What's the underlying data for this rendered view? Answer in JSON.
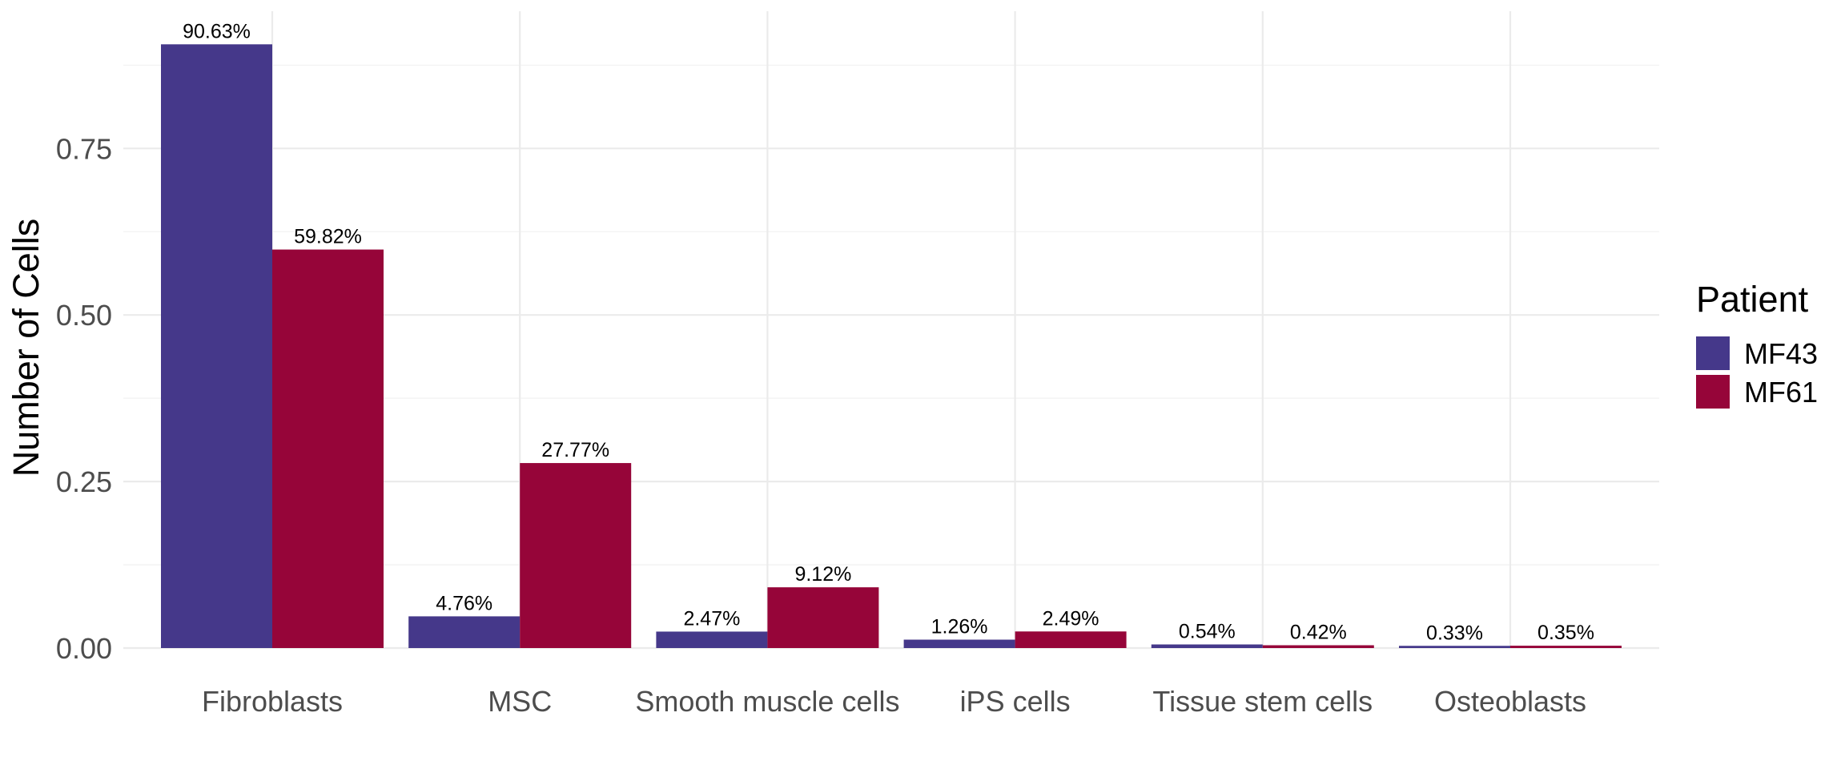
{
  "chart_data": {
    "type": "bar",
    "categories": [
      "Fibroblasts",
      "MSC",
      "Smooth muscle cells",
      "iPS cells",
      "Tissue stem cells",
      "Osteoblasts"
    ],
    "series": [
      {
        "name": "MF43",
        "color": "#45388a",
        "values": [
          0.9063,
          0.0476,
          0.0247,
          0.0126,
          0.0054,
          0.0033
        ],
        "labels": [
          "90.63%",
          "4.76%",
          "2.47%",
          "1.26%",
          "0.54%",
          "0.33%"
        ]
      },
      {
        "name": "MF61",
        "color": "#960539",
        "values": [
          0.5982,
          0.2777,
          0.0912,
          0.0249,
          0.0042,
          0.0035
        ],
        "labels": [
          "59.82%",
          "27.77%",
          "9.12%",
          "2.49%",
          "0.42%",
          "0.35%"
        ]
      }
    ],
    "xlabel": "",
    "ylabel": "Number of Cells",
    "yticks": [
      0,
      0.25,
      0.5,
      0.75
    ],
    "ytick_labels": [
      "0.00",
      "0.25",
      "0.50",
      "0.75"
    ],
    "ylim": [
      0,
      0.95
    ],
    "grid": true,
    "legend": {
      "title": "Patient",
      "position": "right"
    }
  }
}
